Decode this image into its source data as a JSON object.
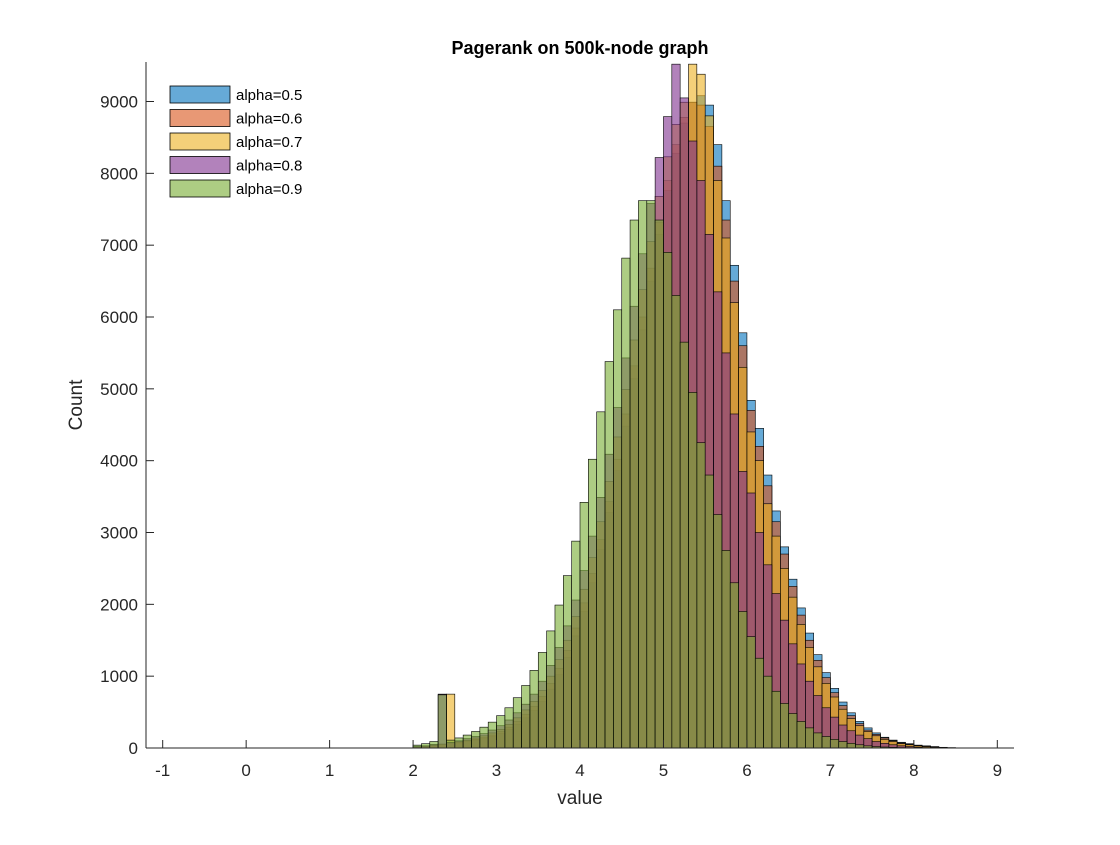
{
  "chart_data": {
    "type": "bar",
    "title": "Pagerank on 500k-node graph",
    "xlabel": "value",
    "ylabel": "Count",
    "xlim": [
      -1.2,
      9.2
    ],
    "ylim": [
      0,
      9550
    ],
    "xticks": [
      "-1",
      "0",
      "1",
      "2",
      "3",
      "4",
      "5",
      "6",
      "7",
      "8",
      "9"
    ],
    "yticks": [
      "0",
      "1000",
      "2000",
      "3000",
      "4000",
      "5000",
      "6000",
      "7000",
      "8000",
      "9000"
    ],
    "legend_position": "top-left",
    "series": [
      {
        "name": "alpha=0.5",
        "color": "#0072BD",
        "bin_start": 2.0,
        "bin_width": 0.1,
        "values": [
          10,
          20,
          30,
          50,
          60,
          70,
          90,
          110,
          130,
          160,
          200,
          260,
          330,
          420,
          520,
          650,
          820,
          1020,
          1260,
          1560,
          1900,
          2300,
          2760,
          3280,
          3860,
          4480,
          5140,
          5820,
          6500,
          7150,
          7760,
          8280,
          8700,
          8990,
          9080,
          8950,
          8400,
          7620,
          6720,
          5780,
          4840,
          4450,
          3800,
          3300,
          2800,
          2350,
          1950,
          1600,
          1300,
          1050,
          830,
          640,
          490,
          370,
          280,
          210,
          150,
          110,
          80,
          60,
          40,
          30,
          20,
          10,
          5
        ]
      },
      {
        "name": "alpha=0.6",
        "color": "#D95319",
        "bin_start": 2.0,
        "bin_width": 0.1,
        "values": [
          10,
          20,
          30,
          50,
          60,
          80,
          100,
          120,
          150,
          180,
          230,
          290,
          370,
          470,
          580,
          720,
          900,
          1110,
          1360,
          1670,
          2020,
          2430,
          2900,
          3430,
          4020,
          4650,
          5320,
          6000,
          6680,
          7320,
          7900,
          8400,
          8780,
          8990,
          8950,
          8650,
          8100,
          7350,
          6500,
          5600,
          4700,
          4200,
          3650,
          3150,
          2700,
          2250,
          1850,
          1500,
          1220,
          980,
          770,
          590,
          450,
          340,
          250,
          190,
          140,
          100,
          70,
          50,
          35,
          25,
          15,
          8,
          4
        ]
      },
      {
        "name": "alpha=0.7",
        "color": "#EDB120",
        "bin_start": 2.0,
        "bin_width": 0.1,
        "values": [
          15,
          25,
          40,
          55,
          750,
          90,
          110,
          140,
          170,
          210,
          260,
          330,
          420,
          530,
          650,
          800,
          1000,
          1230,
          1500,
          1830,
          2210,
          2650,
          3150,
          3710,
          4330,
          4990,
          5680,
          6380,
          7050,
          7680,
          8230,
          8680,
          8990,
          9520,
          9380,
          8800,
          7900,
          7100,
          6200,
          5300,
          4400,
          4000,
          3400,
          2950,
          2500,
          2100,
          1720,
          1400,
          1130,
          900,
          710,
          540,
          410,
          310,
          230,
          170,
          120,
          90,
          60,
          45,
          30,
          20,
          12,
          6,
          3
        ]
      },
      {
        "name": "alpha=0.8",
        "color": "#7E2F8E",
        "bin_start": 2.0,
        "bin_width": 0.1,
        "values": [
          20,
          30,
          50,
          750,
          80,
          100,
          130,
          160,
          200,
          250,
          310,
          390,
          490,
          610,
          750,
          930,
          1150,
          1400,
          1700,
          2060,
          2470,
          2950,
          3490,
          4090,
          4740,
          5430,
          6150,
          6880,
          7580,
          8220,
          8790,
          9520,
          9050,
          8450,
          7900,
          7150,
          6350,
          5500,
          4650,
          3850,
          3550,
          3000,
          2550,
          2150,
          1780,
          1450,
          1170,
          930,
          730,
          560,
          430,
          320,
          240,
          180,
          130,
          90,
          65,
          45,
          30,
          20,
          12,
          6,
          3,
          2,
          1
        ]
      },
      {
        "name": "alpha=0.9",
        "color": "#77AC30",
        "bin_start": 2.0,
        "bin_width": 0.1,
        "values": [
          40,
          60,
          90,
          740,
          110,
          140,
          180,
          230,
          290,
          360,
          450,
          560,
          700,
          870,
          1080,
          1330,
          1630,
          1990,
          2400,
          2880,
          3420,
          4020,
          4680,
          5380,
          6100,
          6820,
          7350,
          7620,
          7620,
          7350,
          6900,
          6300,
          5650,
          4950,
          4250,
          3800,
          3250,
          2750,
          2300,
          1900,
          1550,
          1250,
          1000,
          790,
          620,
          480,
          370,
          280,
          210,
          160,
          120,
          90,
          65,
          45,
          30,
          20,
          14,
          9,
          6,
          4,
          2,
          1,
          1,
          0,
          0
        ]
      }
    ]
  }
}
